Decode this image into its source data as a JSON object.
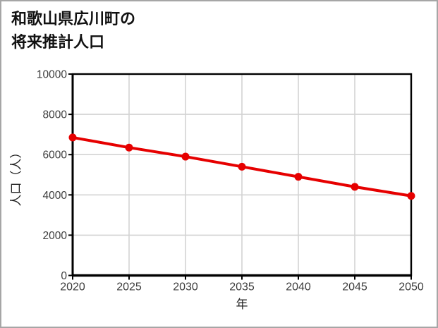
{
  "title": {
    "line1": "和歌山県広川町の",
    "line2": "将来推計人口"
  },
  "chart_data": {
    "type": "line",
    "title": "和歌山県広川町の将来推計人口",
    "xlabel": "年",
    "ylabel": "人口（人）",
    "x": [
      2020,
      2025,
      2030,
      2035,
      2040,
      2045,
      2050
    ],
    "values": [
      6850,
      6350,
      5900,
      5400,
      4900,
      4400,
      3950
    ],
    "xticks": [
      2020,
      2025,
      2030,
      2035,
      2040,
      2045,
      2050
    ],
    "yticks": [
      0,
      2000,
      4000,
      6000,
      8000,
      10000
    ],
    "xlim": [
      2020,
      2050
    ],
    "ylim": [
      0,
      10000
    ],
    "grid": true,
    "legend_position": "none",
    "line_color": "#e60000",
    "marker": "circle"
  },
  "colors": {
    "background": "#ffffff",
    "page_border": "#a6a6a6",
    "grid": "#d3d3d3",
    "axis": "#000000",
    "tick_label": "#3d3d3d",
    "title_text": "#111111"
  }
}
